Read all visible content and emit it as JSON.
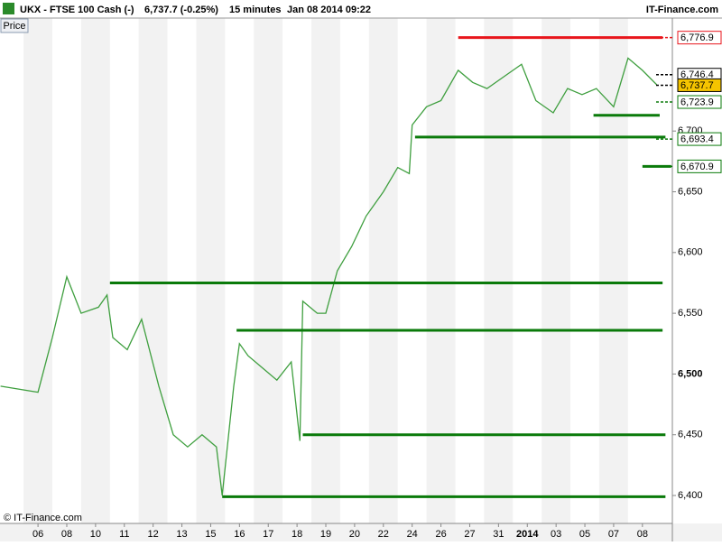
{
  "header": {
    "instrument": "UKX - FTSE 100 Cash (-)",
    "quote": "6,737.7 (-0.25%)",
    "interval": "15 minutes",
    "timestamp": "Jan 08 2014 09:22",
    "site": "IT-Finance.com"
  },
  "price_button": "Price",
  "copyright": "© IT-Finance.com",
  "chart_data": {
    "type": "line",
    "series": [
      {
        "name": "UKX",
        "color": "#3f9f3f",
        "x": [
          -1.3,
          0,
          0.5,
          1,
          1.5,
          2.1,
          2.4,
          2.6,
          3.1,
          3.6,
          4.2,
          4.7,
          5.2,
          5.7,
          6.2,
          6.4,
          6.8,
          7,
          7.3,
          7.8,
          8.3,
          8.8,
          9.1,
          9.2,
          9.7,
          10,
          10.4,
          10.9,
          11.4,
          12,
          12.5,
          12.9,
          13,
          13.5,
          14,
          14.6,
          15.1,
          15.6,
          16.2,
          16.8,
          17.3,
          17.9,
          18.4,
          18.9,
          19.4,
          20,
          20.5,
          21,
          21.5
        ],
        "values": [
          6490,
          6485,
          6530,
          6580,
          6550,
          6555,
          6565,
          6530,
          6520,
          6545,
          6490,
          6450,
          6440,
          6450,
          6440,
          6400,
          6490,
          6525,
          6515,
          6505,
          6495,
          6510,
          6445,
          6560,
          6550,
          6550,
          6585,
          6605,
          6630,
          6650,
          6670,
          6665,
          6705,
          6720,
          6725,
          6750,
          6740,
          6735,
          6745,
          6755,
          6725,
          6715,
          6735,
          6730,
          6735,
          6720,
          6760,
          6750,
          6738
        ]
      }
    ],
    "levels": [
      {
        "value": 6776.9,
        "x": [
          14.6,
          21.7
        ],
        "color": "#e8151b"
      },
      {
        "value": 6713,
        "x": [
          19.3,
          21.6
        ],
        "color": "#0a7a0a"
      },
      {
        "value": 6695,
        "x": [
          13.1,
          21.8
        ],
        "color": "#0a7a0a"
      },
      {
        "value": 6670.9,
        "x": [
          21,
          22
        ],
        "color": "#0a7a0a"
      },
      {
        "value": 6575,
        "x": [
          2.5,
          21.7
        ],
        "color": "#0a7a0a"
      },
      {
        "value": 6536,
        "x": [
          6.9,
          21.7
        ],
        "color": "#0a7a0a"
      },
      {
        "value": 6450,
        "x": [
          9.2,
          21.8
        ],
        "color": "#0a7a0a"
      },
      {
        "value": 6399,
        "x": [
          6.4,
          21.8
        ],
        "color": "#0a7a0a"
      }
    ],
    "price_labels": [
      {
        "value": 6776.9,
        "label": "6,776.9",
        "color": "#e8151b"
      },
      {
        "value": 6746.4,
        "label": "6,746.4",
        "color": "#000000"
      },
      {
        "value": 6737.7,
        "label": "6,737.7",
        "color": "#000000",
        "background": "#f5c400"
      },
      {
        "value": 6723.9,
        "label": "6,723.9",
        "color": "#0a7a0a"
      },
      {
        "value": 6693.4,
        "label": "6,693.4",
        "color": "#0a7a0a"
      },
      {
        "value": 6670.9,
        "label": "6,670.9",
        "color": "#0a7a0a"
      }
    ],
    "xlim": [
      -1.32,
      22.04
    ],
    "xticks": [
      {
        "value": 0,
        "label": "06"
      },
      {
        "value": 1,
        "label": "08"
      },
      {
        "value": 2,
        "label": "10"
      },
      {
        "value": 3,
        "label": "11"
      },
      {
        "value": 4,
        "label": "12"
      },
      {
        "value": 5,
        "label": "13"
      },
      {
        "value": 6,
        "label": "15"
      },
      {
        "value": 7,
        "label": "16"
      },
      {
        "value": 8,
        "label": "17"
      },
      {
        "value": 9,
        "label": "18"
      },
      {
        "value": 10,
        "label": "19"
      },
      {
        "value": 11,
        "label": "20"
      },
      {
        "value": 12,
        "label": "22"
      },
      {
        "value": 13,
        "label": "24"
      },
      {
        "value": 14,
        "label": "26"
      },
      {
        "value": 15,
        "label": "27"
      },
      {
        "value": 16,
        "label": "31"
      },
      {
        "value": 17,
        "label": "2014"
      },
      {
        "value": 18,
        "label": "03"
      },
      {
        "value": 19,
        "label": "05"
      },
      {
        "value": 20,
        "label": "07"
      },
      {
        "value": 21,
        "label": "08"
      }
    ],
    "ylim": [
      6377,
      6793
    ],
    "yticks": [
      {
        "value": 6400,
        "label": "6,400"
      },
      {
        "value": 6450,
        "label": "6,450"
      },
      {
        "value": 6500,
        "label": "6,500"
      },
      {
        "value": 6550,
        "label": "6,550"
      },
      {
        "value": 6600,
        "label": "6,600"
      },
      {
        "value": 6650,
        "label": "6,650"
      },
      {
        "value": 6700,
        "label": "6,700"
      }
    ]
  }
}
